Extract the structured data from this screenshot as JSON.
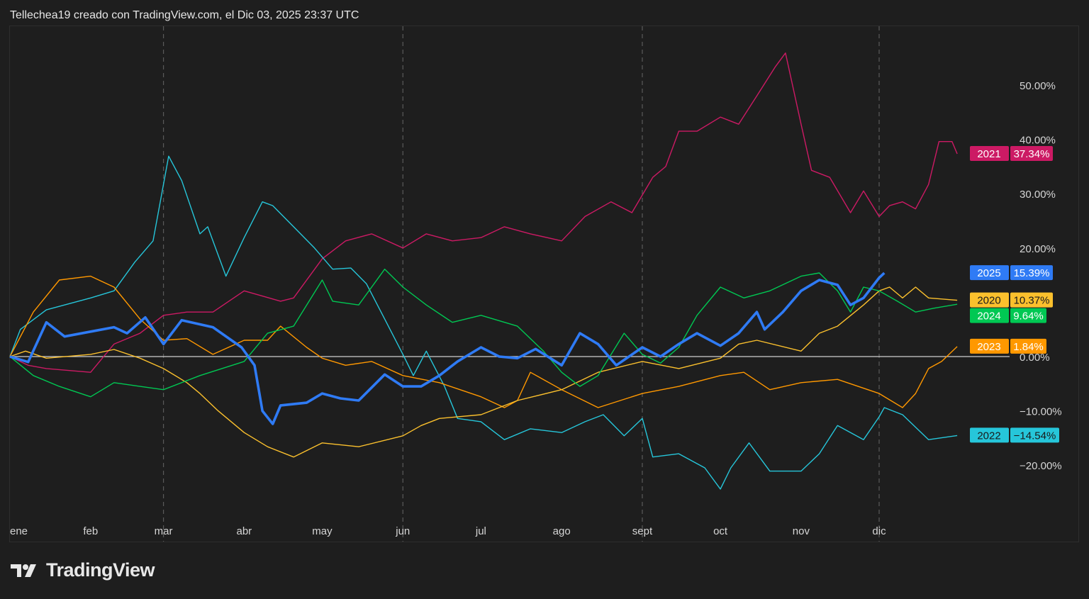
{
  "caption": "Tellechea19 creado con TradingView.com, el Dic 03, 2025 23:37 UTC",
  "brand": "TradingView",
  "chart_data": {
    "type": "line",
    "title": "",
    "xlabel": "",
    "ylabel": "",
    "x_ticks": [
      {
        "label": "ene",
        "date": "01-01"
      },
      {
        "label": "feb",
        "date": "02-01"
      },
      {
        "label": "mar",
        "date": "03-01"
      },
      {
        "label": "abr",
        "date": "04-01"
      },
      {
        "label": "may",
        "date": "05-01"
      },
      {
        "label": "jun",
        "date": "06-01"
      },
      {
        "label": "jul",
        "date": "07-01"
      },
      {
        "label": "ago",
        "date": "08-01"
      },
      {
        "label": "sept",
        "date": "09-01"
      },
      {
        "label": "oct",
        "date": "10-01"
      },
      {
        "label": "nov",
        "date": "11-01"
      },
      {
        "label": "dic",
        "date": "12-01"
      }
    ],
    "dashed_gridlines_at": [
      "03-01",
      "06-01",
      "09-01",
      "12-01"
    ],
    "y_ticks": [
      {
        "label": "50.00%",
        "value": 50
      },
      {
        "label": "40.00%",
        "value": 40
      },
      {
        "label": "30.00%",
        "value": 30
      },
      {
        "label": "20.00%",
        "value": 20
      },
      {
        "label": "0.00%",
        "value": 0
      },
      {
        "label": "−10.00%",
        "value": -10
      },
      {
        "label": "−20.00%",
        "value": -20
      }
    ],
    "ylim": [
      -25,
      58
    ],
    "baseline": 0,
    "series": [
      {
        "name": "2021",
        "last_label": "37.34%",
        "last": 37.34,
        "color": "#cc1a64",
        "width": 1.4,
        "x": [
          "01-01",
          "01-08",
          "01-15",
          "02-01",
          "02-10",
          "02-20",
          "03-01",
          "03-10",
          "03-20",
          "04-01",
          "04-15",
          "04-20",
          "05-01",
          "05-10",
          "05-20",
          "06-01",
          "06-10",
          "06-20",
          "07-01",
          "07-10",
          "07-20",
          "08-01",
          "08-10",
          "08-20",
          "08-28",
          "09-05",
          "09-10",
          "09-15",
          "09-22",
          "10-01",
          "10-08",
          "10-15",
          "10-22",
          "10-26",
          "11-01",
          "11-05",
          "11-12",
          "11-20",
          "11-25",
          "12-01",
          "12-05",
          "12-10",
          "12-15",
          "12-20",
          "12-24",
          "12-29",
          "12-31"
        ],
        "y": [
          0,
          -1.6,
          -2.2,
          -2.9,
          2.3,
          4.3,
          7.6,
          8.2,
          8.2,
          12.1,
          10.2,
          10.8,
          18,
          21.3,
          22.6,
          20,
          22.6,
          21.3,
          21.9,
          23.9,
          22.6,
          21.3,
          25.8,
          28.5,
          26.5,
          33,
          35,
          41.5,
          41.5,
          44.1,
          42.8,
          48,
          53.3,
          55.9,
          42.8,
          34.3,
          33,
          26.5,
          30.5,
          25.8,
          27.8,
          28.5,
          27.2,
          31.7,
          39.6,
          39.6,
          37.34
        ]
      },
      {
        "name": "2022",
        "last_label": "−14.54%",
        "last": -14.54,
        "color": "#26c6da",
        "width": 1.4,
        "x": [
          "01-01",
          "01-05",
          "01-15",
          "02-01",
          "02-10",
          "02-18",
          "02-25",
          "03-03",
          "03-08",
          "03-15",
          "03-18",
          "03-25",
          "04-01",
          "04-08",
          "04-12",
          "04-20",
          "04-28",
          "05-05",
          "05-12",
          "05-18",
          "05-25",
          "06-01",
          "06-05",
          "06-10",
          "06-17",
          "06-22",
          "07-01",
          "07-10",
          "07-20",
          "08-01",
          "08-10",
          "08-17",
          "08-25",
          "09-01",
          "09-05",
          "09-15",
          "09-25",
          "10-01",
          "10-05",
          "10-12",
          "10-20",
          "11-01",
          "11-08",
          "11-15",
          "11-25",
          "12-01",
          "12-03",
          "12-10",
          "12-20",
          "12-31"
        ],
        "y": [
          0,
          5,
          8.6,
          10.8,
          12.1,
          17.4,
          21.3,
          36.9,
          32.4,
          22.6,
          23.9,
          14.8,
          21.9,
          28.5,
          27.8,
          23.9,
          20,
          16.1,
          16.3,
          13.4,
          6.9,
          0.4,
          -3.5,
          1,
          -5.5,
          -11.4,
          -12,
          -15.3,
          -13.3,
          -14,
          -12,
          -10.7,
          -14.6,
          -11.4,
          -18.5,
          -17.9,
          -20.5,
          -24.4,
          -20.5,
          -15.9,
          -21.1,
          -21.1,
          -17.9,
          -12.7,
          -15.3,
          -11.1,
          -9.4,
          -10.7,
          -15.3,
          -14.54
        ]
      },
      {
        "name": "2023",
        "last_label": "1.84%",
        "last": 1.84,
        "color": "#ff9800",
        "width": 1.4,
        "x": [
          "01-01",
          "01-10",
          "01-20",
          "02-01",
          "02-10",
          "02-20",
          "03-01",
          "03-10",
          "03-20",
          "04-01",
          "04-10",
          "04-15",
          "04-25",
          "05-01",
          "05-10",
          "05-20",
          "06-01",
          "06-15",
          "07-01",
          "07-10",
          "07-15",
          "07-20",
          "08-01",
          "08-15",
          "09-01",
          "09-15",
          "10-01",
          "10-10",
          "10-20",
          "11-01",
          "11-15",
          "12-01",
          "12-10",
          "12-15",
          "12-20",
          "12-25",
          "12-31"
        ],
        "y": [
          0,
          8.2,
          14.1,
          14.8,
          12.8,
          6.9,
          3,
          3.3,
          0.4,
          3,
          3,
          5.6,
          1.7,
          -0.3,
          -1.6,
          -0.9,
          -3.5,
          -4.8,
          -7.4,
          -9.4,
          -8.1,
          -2.9,
          -6.1,
          -9.4,
          -6.8,
          -5.5,
          -3.5,
          -2.9,
          -6.1,
          -4.8,
          -4.2,
          -6.8,
          -9.4,
          -6.8,
          -2.2,
          -0.9,
          1.84
        ]
      },
      {
        "name": "2020",
        "last_label": "10.37%",
        "last": 10.37,
        "color": "#fbc02d",
        "width": 1.4,
        "x": [
          "01-01",
          "01-07",
          "01-15",
          "02-01",
          "02-10",
          "02-20",
          "03-01",
          "03-10",
          "03-15",
          "03-22",
          "04-01",
          "04-10",
          "04-20",
          "05-01",
          "05-15",
          "06-01",
          "06-08",
          "06-15",
          "07-01",
          "07-15",
          "08-01",
          "08-15",
          "09-01",
          "09-15",
          "10-01",
          "10-08",
          "10-15",
          "11-01",
          "11-08",
          "11-15",
          "11-25",
          "12-01",
          "12-05",
          "12-10",
          "12-15",
          "12-20",
          "12-31"
        ],
        "y": [
          0,
          1,
          -0.3,
          0.4,
          1.3,
          -0.3,
          -2.2,
          -4.8,
          -6.8,
          -10,
          -14,
          -16.6,
          -18.5,
          -15.9,
          -16.6,
          -14.6,
          -12.7,
          -11.4,
          -10.7,
          -8.1,
          -6.1,
          -2.9,
          -0.9,
          -2.2,
          -0.3,
          2.3,
          3,
          1,
          4.3,
          5.6,
          9.5,
          12.1,
          12.8,
          10.8,
          12.8,
          10.8,
          10.37
        ]
      },
      {
        "name": "2024",
        "last_label": "9.64%",
        "last": 9.64,
        "color": "#00c853",
        "width": 1.4,
        "x": [
          "01-01",
          "01-10",
          "01-20",
          "02-01",
          "02-10",
          "02-20",
          "03-01",
          "03-15",
          "04-01",
          "04-10",
          "04-20",
          "05-01",
          "05-05",
          "05-15",
          "05-25",
          "06-01",
          "06-10",
          "06-20",
          "07-01",
          "07-15",
          "07-25",
          "08-01",
          "08-08",
          "08-15",
          "08-25",
          "09-01",
          "09-08",
          "09-15",
          "09-22",
          "10-01",
          "10-10",
          "10-20",
          "11-01",
          "11-08",
          "11-15",
          "11-20",
          "11-25",
          "12-01",
          "12-08",
          "12-15",
          "12-22",
          "12-31"
        ],
        "y": [
          0,
          -3.5,
          -5.5,
          -7.4,
          -4.8,
          -5.5,
          -6.1,
          -3.5,
          -0.9,
          4.3,
          5.6,
          14.1,
          10.2,
          9.5,
          16.1,
          12.8,
          9.5,
          6.3,
          7.6,
          5.6,
          1,
          -2.9,
          -5.5,
          -3.5,
          4.3,
          0.4,
          -1.2,
          1.7,
          7.6,
          12.8,
          10.8,
          12.1,
          14.8,
          15.4,
          12.1,
          8.2,
          12.8,
          12.1,
          10.2,
          8.2,
          8.9,
          9.64
        ]
      },
      {
        "name": "2025",
        "last_label": "15.39%",
        "last": 15.39,
        "color": "#2f7bf5",
        "width": 3.6,
        "x": [
          "01-01",
          "01-08",
          "01-15",
          "01-22",
          "02-01",
          "02-10",
          "02-15",
          "02-22",
          "03-01",
          "03-08",
          "03-20",
          "03-31",
          "04-05",
          "04-08",
          "04-12",
          "04-15",
          "04-25",
          "05-01",
          "05-08",
          "05-15",
          "05-25",
          "06-01",
          "06-08",
          "06-15",
          "06-22",
          "07-01",
          "07-08",
          "07-15",
          "07-22",
          "08-01",
          "08-08",
          "08-15",
          "08-22",
          "09-01",
          "09-08",
          "09-15",
          "09-22",
          "10-01",
          "10-08",
          "10-15",
          "10-18",
          "10-25",
          "11-01",
          "11-08",
          "11-15",
          "11-20",
          "11-25",
          "12-01",
          "12-03"
        ],
        "y": [
          0,
          -1,
          6.3,
          3.7,
          4.6,
          5.4,
          4.3,
          7.2,
          2.3,
          6.7,
          5.4,
          1.7,
          -1.6,
          -10,
          -12.4,
          -9,
          -8.5,
          -6.8,
          -7.7,
          -8.1,
          -3.3,
          -5.5,
          -5.5,
          -3.5,
          -0.9,
          1.7,
          0,
          -0.3,
          1.4,
          -1.6,
          4.3,
          2.3,
          -1.6,
          1.7,
          0,
          2.3,
          4.3,
          2,
          4.3,
          8.2,
          5,
          8.2,
          12.1,
          14.1,
          13.2,
          9.5,
          10.8,
          14.5,
          15.39
        ]
      }
    ]
  }
}
